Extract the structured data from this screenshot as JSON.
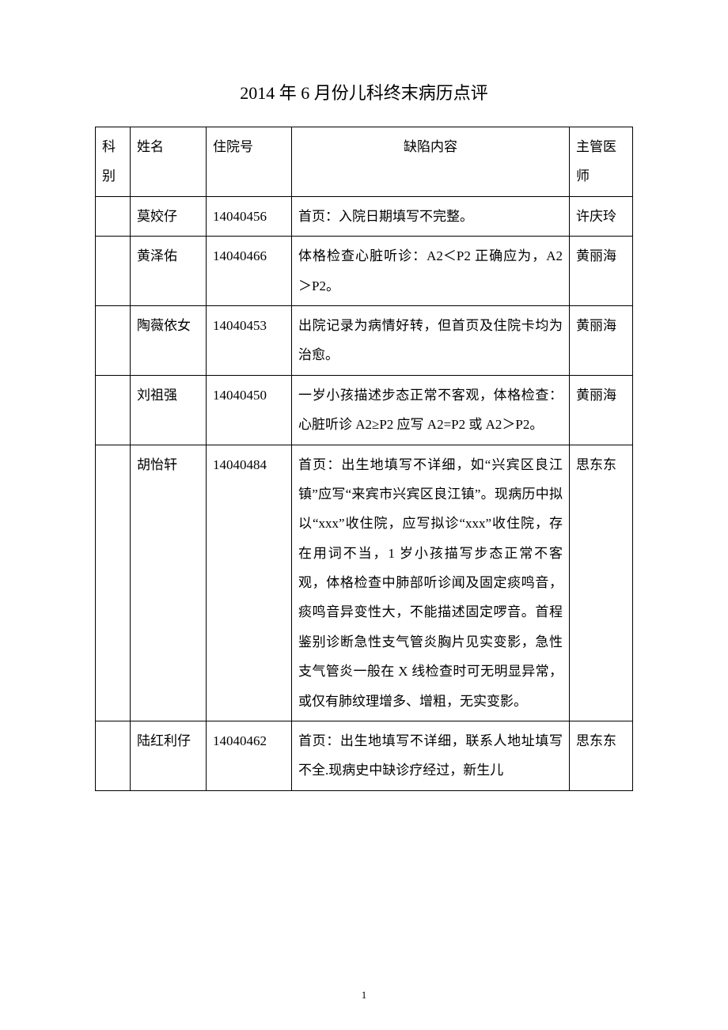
{
  "title": "2014 年 6 月份儿科终末病历点评",
  "columns": {
    "dept": "科别",
    "name": "姓名",
    "num": "住院号",
    "defect": "缺陷内容",
    "doctor": "主管医师"
  },
  "rows": [
    {
      "dept": "",
      "name": "莫姣仔",
      "num": "14040456",
      "defect": "首页：入院日期填写不完整。",
      "doctor": "许庆玲"
    },
    {
      "dept": "",
      "name": "黄泽佑",
      "num": "14040466",
      "defect": "体格检查心脏听诊：A2＜P2 正确应为，A2＞P2。",
      "doctor": "黄丽海"
    },
    {
      "dept": "",
      "name": "陶薇依女",
      "num": "14040453",
      "defect": "出院记录为病情好转，但首页及住院卡均为治愈。",
      "doctor": "黄丽海"
    },
    {
      "dept": "",
      "name": "刘祖强",
      "num": "14040450",
      "defect": "一岁小孩描述步态正常不客观，体格检查：心脏听诊 A2≥P2 应写 A2=P2 或 A2＞P2。",
      "doctor": "黄丽海"
    },
    {
      "dept": "",
      "name": "胡怡轩",
      "num": "14040484",
      "defect": "首页：出生地填写不详细，如“兴宾区良江镇”应写“来宾市兴宾区良江镇”。现病历中拟以“xxx”收住院，应写拟诊“xxx”收住院，存在用词不当，1 岁小孩描写步态正常不客观，体格检查中肺部听诊闻及固定痰鸣音，痰鸣音异变性大，不能描述固定啰音。首程鉴别诊断急性支气管炎胸片见实变影，急性支气管炎一般在 X 线检查时可无明显异常，或仅有肺纹理增多、增粗，无实变影。",
      "doctor": "思东东"
    },
    {
      "dept": "",
      "name": "陆红利仔",
      "num": "14040462",
      "defect": "首页：出生地填写不详细，联系人地址填写不全.现病史中缺诊疗经过，新生儿",
      "doctor": "思东东"
    }
  ],
  "page_number": "1"
}
